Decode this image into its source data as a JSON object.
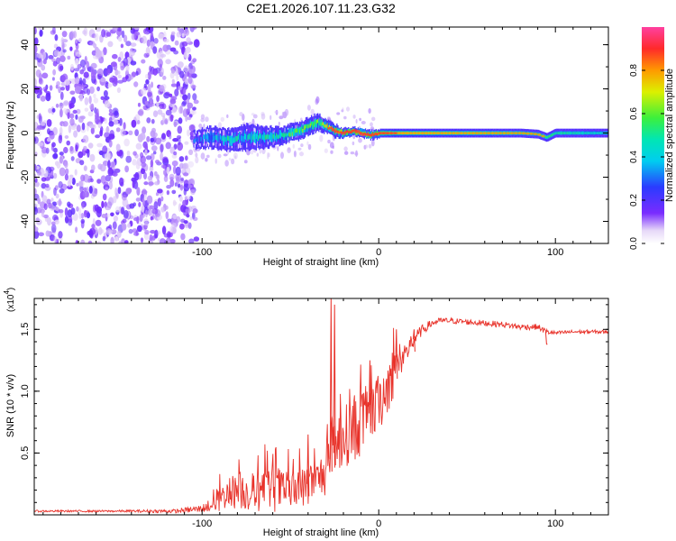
{
  "figure_title": "C2E1.2026.107.11.23.G32",
  "chart_data": [
    {
      "type": "heatmap",
      "title": "C2E1.2026.107.11.23.G32",
      "xlabel": "Height of straight line (km)",
      "ylabel": "Frequency (Hz)",
      "xlim": [
        -195,
        130
      ],
      "ylim": [
        -50,
        48
      ],
      "x_ticks": [
        -100,
        0,
        100
      ],
      "x_tick_labels": [
        "-100",
        "0",
        "100"
      ],
      "y_ticks": [
        -40,
        -20,
        0,
        20,
        40
      ],
      "y_tick_labels": [
        "-40",
        "-20",
        "0",
        "20",
        "40"
      ],
      "colorbar": {
        "label": "Normalized spectral amplitude",
        "range": [
          0,
          1
        ],
        "ticks": [
          0.0,
          0.2,
          0.4,
          0.6,
          0.8
        ],
        "tick_labels": [
          "0.0",
          "0.2",
          "0.4",
          "0.6",
          "0.8"
        ]
      },
      "noise_region": {
        "x_range": [
          -195,
          -103
        ],
        "y_range": [
          -50,
          48
        ],
        "amplitude": 0.1
      },
      "ridge": {
        "x": [
          -105,
          -95,
          -85,
          -75,
          -65,
          -55,
          -45,
          -40,
          -35,
          -30,
          -25,
          -20,
          -15,
          -10,
          -5,
          0,
          10,
          20,
          40,
          60,
          80,
          90,
          95,
          100,
          110,
          120,
          130
        ],
        "freq": [
          -3,
          -2,
          -3,
          -2,
          -2,
          -1,
          1,
          3,
          5,
          3,
          1,
          0,
          1,
          0,
          -1,
          0,
          0,
          0,
          0,
          0,
          0,
          -0.5,
          -2,
          0,
          0,
          0,
          0
        ],
        "width": [
          4,
          5,
          5,
          6,
          5,
          4,
          4,
          4,
          4,
          3,
          3,
          2,
          2,
          2,
          2,
          2,
          2,
          2,
          2,
          2,
          2,
          2,
          2,
          2,
          2,
          2,
          2
        ],
        "amplitude": [
          0.25,
          0.35,
          0.4,
          0.4,
          0.45,
          0.5,
          0.55,
          0.6,
          0.6,
          0.7,
          0.85,
          0.85,
          0.9,
          0.95,
          0.9,
          0.85,
          0.75,
          0.7,
          0.65,
          0.6,
          0.55,
          0.5,
          0.55,
          0.5,
          0.5,
          0.45,
          0.45
        ]
      }
    },
    {
      "type": "line",
      "xlabel": "Height of straight line (km)",
      "ylabel": "SNR (10 * v/v)",
      "y_multiplier_label": "(x10",
      "y_multiplier_exp": "4",
      "y_multiplier_close": ")",
      "xlim": [
        -195,
        130
      ],
      "ylim": [
        0,
        1.75
      ],
      "x_ticks": [
        -100,
        0,
        100
      ],
      "x_tick_labels": [
        "-100",
        "0",
        "100"
      ],
      "y_ticks": [
        0.5,
        1.0,
        1.5
      ],
      "y_tick_labels": [
        "0.5",
        "1.0",
        "1.5"
      ],
      "series": [
        {
          "name": "SNR",
          "color": "#e8322a",
          "x": [
            -195,
            -150,
            -115,
            -100,
            -95,
            -90,
            -85,
            -80,
            -75,
            -70,
            -65,
            -60,
            -55,
            -50,
            -45,
            -40,
            -35,
            -30,
            -27,
            -25,
            -22,
            -20,
            -15,
            -10,
            -5,
            0,
            5,
            10,
            15,
            20,
            25,
            30,
            35,
            40,
            50,
            60,
            70,
            80,
            90,
            95,
            100,
            110,
            120,
            130
          ],
          "y": [
            0.03,
            0.03,
            0.03,
            0.05,
            0.08,
            0.12,
            0.18,
            0.2,
            0.18,
            0.17,
            0.2,
            0.22,
            0.2,
            0.18,
            0.2,
            0.25,
            0.28,
            0.35,
            0.45,
            0.5,
            0.6,
            0.62,
            0.7,
            0.75,
            0.82,
            0.9,
            1.05,
            1.2,
            1.3,
            1.42,
            1.5,
            1.55,
            1.57,
            1.57,
            1.56,
            1.55,
            1.54,
            1.52,
            1.52,
            1.48,
            1.47,
            1.48,
            1.48,
            1.48
          ],
          "spread": [
            0.01,
            0.01,
            0.02,
            0.04,
            0.08,
            0.12,
            0.15,
            0.2,
            0.18,
            0.2,
            0.22,
            0.25,
            0.22,
            0.2,
            0.2,
            0.22,
            0.2,
            0.25,
            0.2,
            0.35,
            0.3,
            0.3,
            0.35,
            0.35,
            0.3,
            0.3,
            0.3,
            0.25,
            0.15,
            0.08,
            0.05,
            0.04,
            0.03,
            0.03,
            0.03,
            0.03,
            0.03,
            0.03,
            0.03,
            0.03,
            0.02,
            0.02,
            0.02,
            0.02
          ],
          "spikes": [
            {
              "x": -40,
              "y": 0.65
            },
            {
              "x": -27,
              "y": 1.75
            },
            {
              "x": -25,
              "y": 1.7
            },
            {
              "x": -5,
              "y": 1.25
            },
            {
              "x": 10,
              "y": 1.5
            },
            {
              "x": 20,
              "y": 1.5
            },
            {
              "x": 95,
              "y": 1.38
            }
          ]
        }
      ]
    }
  ]
}
